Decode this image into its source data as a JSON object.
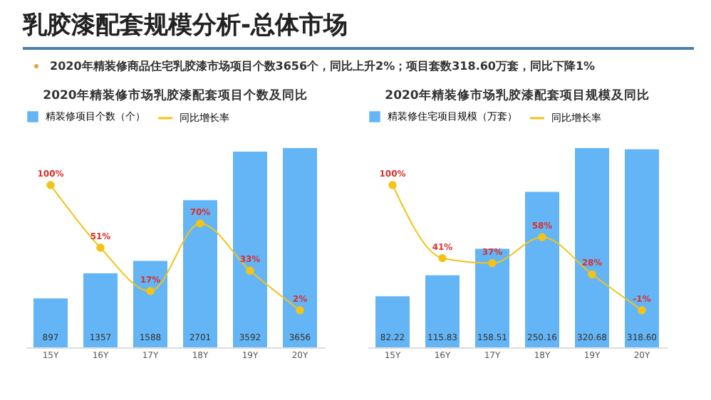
{
  "chart_data": [
    {
      "type": "other",
      "title": "乳胶漆配套规模分析-总体市场",
      "annotations": [
        "2020年精装修商品住宅乳胶漆市场项目个数3656个，同比上升2%；项目套数318.60万套，同比下降1%"
      ]
    },
    {
      "type": "bar",
      "title": "2020年精装修市场乳胶漆配套项目个数及同比",
      "categories": [
        "15Y",
        "16Y",
        "17Y",
        "18Y",
        "19Y",
        "20Y"
      ],
      "tick_labels": "x",
      "legend": "top",
      "marker": "circle",
      "series": [
        {
          "name": "精装修项目个数（个）",
          "type": "bar",
          "color": "#64b5f6",
          "values": [
            897,
            1357,
            1588,
            2701,
            3592,
            3656
          ],
          "value_labels": [
            "897",
            "1357",
            "1588",
            "2701",
            "3592",
            "3656"
          ]
        },
        {
          "name": "同比增长率",
          "type": "line",
          "axis": "y2",
          "color": "#f2c318",
          "values": [
            100,
            51,
            17,
            70,
            33,
            2
          ],
          "value_labels": [
            "100%",
            "51%",
            "17%",
            "70%",
            "33%",
            "2%"
          ]
        }
      ]
    },
    {
      "type": "bar",
      "title": "2020年精装修市场乳胶漆配套项目规模及同比",
      "categories": [
        "15Y",
        "16Y",
        "17Y",
        "18Y",
        "19Y",
        "20Y"
      ],
      "tick_labels": "x",
      "legend": "top",
      "marker": "circle",
      "series": [
        {
          "name": "精装修住宅项目规模（万套）",
          "type": "bar",
          "color": "#64b5f6",
          "values": [
            82.22,
            115.83,
            158.51,
            250.16,
            320.68,
            318.6
          ],
          "value_labels": [
            "82.22",
            "115.83",
            "158.51",
            "250.16",
            "320.68",
            "318.60"
          ]
        },
        {
          "name": "同比增长率",
          "type": "line",
          "axis": "y2",
          "color": "#f2c318",
          "values": [
            100,
            41,
            37,
            58,
            28,
            -1
          ],
          "value_labels": [
            "100%",
            "41%",
            "37%",
            "58%",
            "28%",
            "-1%"
          ]
        }
      ]
    }
  ]
}
